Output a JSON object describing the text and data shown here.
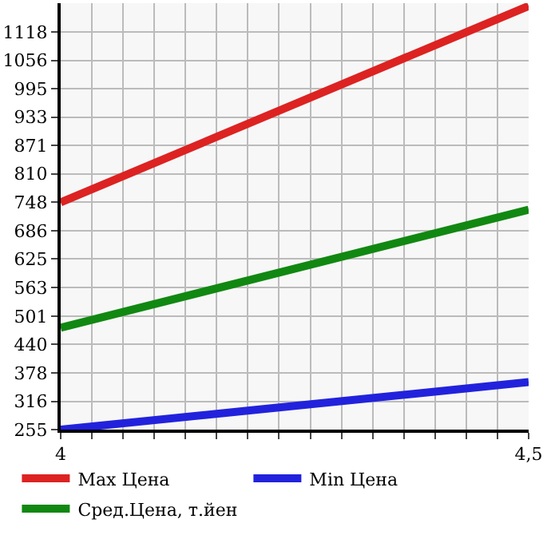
{
  "chart_data": {
    "type": "line",
    "x": [
      4,
      4.5
    ],
    "series": [
      {
        "name": "Max Цена",
        "color": "#dd2222",
        "values": [
          748,
          1174
        ]
      },
      {
        "name": "Min Цена",
        "color": "#2222dd",
        "values": [
          255,
          358
        ]
      },
      {
        "name": "Сред.Цена, т.йен",
        "color": "#118811",
        "values": [
          476,
          732
        ]
      }
    ],
    "xlim": [
      4,
      4.5
    ],
    "xticks": [
      {
        "value": 4,
        "label": "4"
      },
      {
        "value": 4.0333,
        "label": null
      },
      {
        "value": 4.0667,
        "label": null
      },
      {
        "value": 4.1,
        "label": null
      },
      {
        "value": 4.1333,
        "label": null
      },
      {
        "value": 4.1667,
        "label": null
      },
      {
        "value": 4.2,
        "label": null
      },
      {
        "value": 4.2333,
        "label": null
      },
      {
        "value": 4.2667,
        "label": null
      },
      {
        "value": 4.3,
        "label": null
      },
      {
        "value": 4.3333,
        "label": null
      },
      {
        "value": 4.3667,
        "label": null
      },
      {
        "value": 4.4,
        "label": null
      },
      {
        "value": 4.4333,
        "label": null
      },
      {
        "value": 4.4667,
        "label": null
      },
      {
        "value": 4.5,
        "label": "4,5"
      }
    ],
    "ylim": [
      255,
      1180
    ],
    "yticks": [
      255,
      316,
      378,
      440,
      501,
      563,
      625,
      686,
      748,
      810,
      871,
      933,
      995,
      1056,
      1118
    ],
    "grid": true,
    "legend": "bottom",
    "marker": "none",
    "line_style": "solid"
  }
}
